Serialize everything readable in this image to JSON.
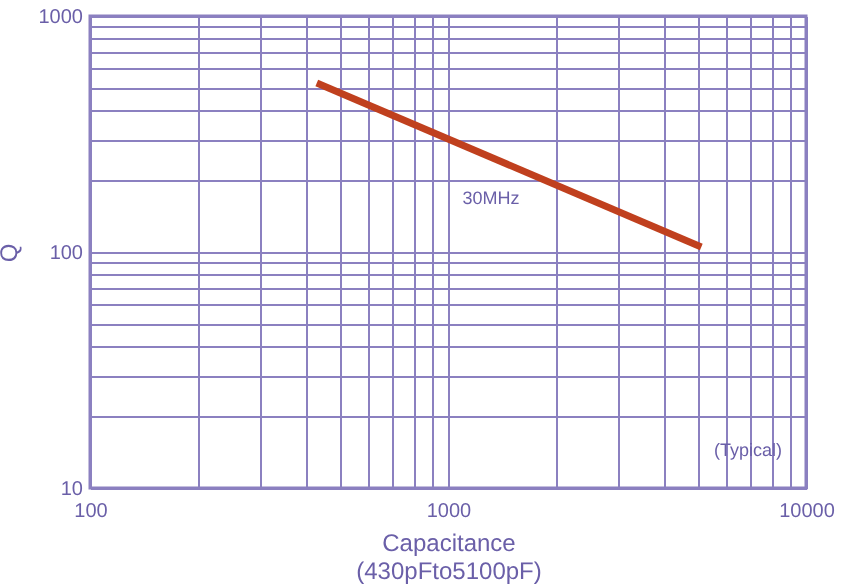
{
  "chart_data": {
    "type": "line",
    "xlabel": "Capacitance\n(430pFto5100pF)",
    "ylabel": "Q",
    "x": [
      430,
      5100
    ],
    "series": [
      {
        "color": "#c0401e",
        "values": [
          520,
          105
        ]
      }
    ],
    "log": "xy",
    "xlim": [
      100,
      10000
    ],
    "ylim": [
      10,
      1000
    ],
    "xticks": [
      100,
      {
        "value": 200,
        "label": null
      },
      {
        "value": 300,
        "label": null
      },
      {
        "value": 400,
        "label": null
      },
      {
        "value": 500,
        "label": null
      },
      {
        "value": 600,
        "label": null
      },
      {
        "value": 700,
        "label": null
      },
      {
        "value": 800,
        "label": null
      },
      {
        "value": 900,
        "label": null
      },
      1000,
      {
        "value": 2000,
        "label": null
      },
      {
        "value": 3000,
        "label": null
      },
      {
        "value": 4000,
        "label": null
      },
      {
        "value": 5000,
        "label": null
      },
      {
        "value": 6000,
        "label": null
      },
      {
        "value": 7000,
        "label": null
      },
      {
        "value": 8000,
        "label": null
      },
      {
        "value": 9000,
        "label": null
      },
      10000
    ],
    "yticks": [
      10,
      {
        "value": 20,
        "label": null
      },
      {
        "value": 30,
        "label": null
      },
      {
        "value": 40,
        "label": null
      },
      {
        "value": 50,
        "label": null
      },
      {
        "value": 60,
        "label": null
      },
      {
        "value": 70,
        "label": null
      },
      {
        "value": 80,
        "label": null
      },
      {
        "value": 90,
        "label": null
      },
      100,
      {
        "value": 200,
        "label": null
      },
      {
        "value": 300,
        "label": null
      },
      {
        "value": 400,
        "label": null
      },
      {
        "value": 500,
        "label": null
      },
      {
        "value": 600,
        "label": null
      },
      {
        "value": 700,
        "label": null
      },
      {
        "value": 800,
        "label": null
      },
      {
        "value": 900,
        "label": null
      },
      1000
    ],
    "grid": true,
    "marker": "none",
    "annotations": [
      "30MHz",
      "(Typical)"
    ]
  }
}
